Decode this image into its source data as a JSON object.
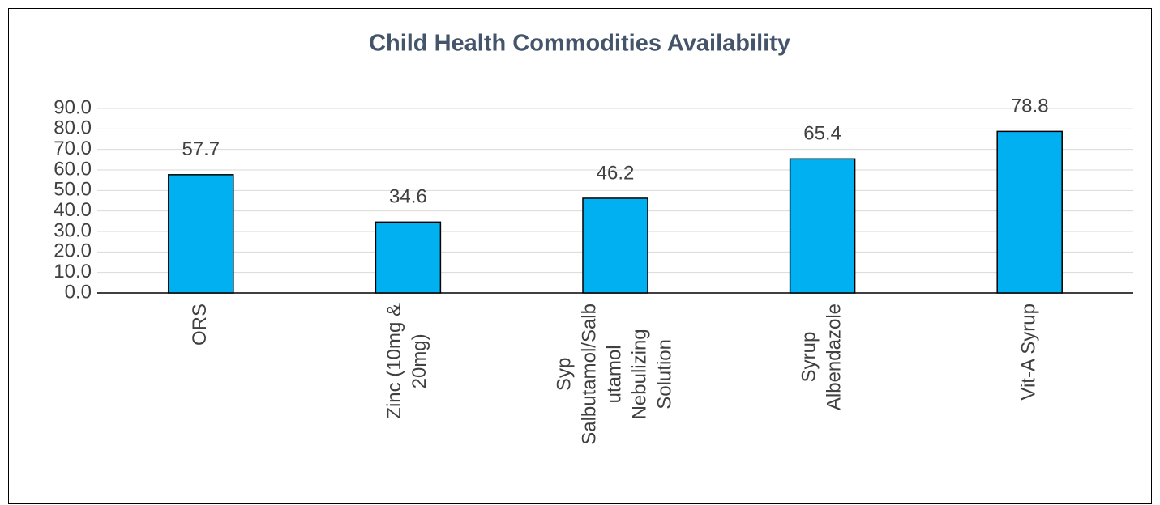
{
  "chart_data": {
    "type": "bar",
    "title": "Child Health Commodities Availability",
    "categories": [
      [
        "ORS"
      ],
      [
        "Zinc (10mg &",
        "20mg)"
      ],
      [
        "Syp",
        "Salbutamol/Salb",
        "utamol",
        "Nebulizing",
        "Solution"
      ],
      [
        "Syrup",
        "Albendazole"
      ],
      [
        "Vit-A Syrup"
      ]
    ],
    "values": [
      57.7,
      34.6,
      46.2,
      65.4,
      78.8
    ],
    "color": "#00b0f0",
    "ylim": [
      0,
      90
    ],
    "yticks": [
      {
        "value": 0,
        "label": "0.0"
      },
      {
        "value": 10,
        "label": "10.0"
      },
      {
        "value": 20,
        "label": "20.0"
      },
      {
        "value": 30,
        "label": "30.0"
      },
      {
        "value": 40,
        "label": "40.0"
      },
      {
        "value": 50,
        "label": "50.0"
      },
      {
        "value": 60,
        "label": "60.0"
      },
      {
        "value": 70,
        "label": "70.0"
      },
      {
        "value": 80,
        "label": "80.0"
      },
      {
        "value": 90,
        "label": "90.0"
      }
    ],
    "grid": true
  }
}
